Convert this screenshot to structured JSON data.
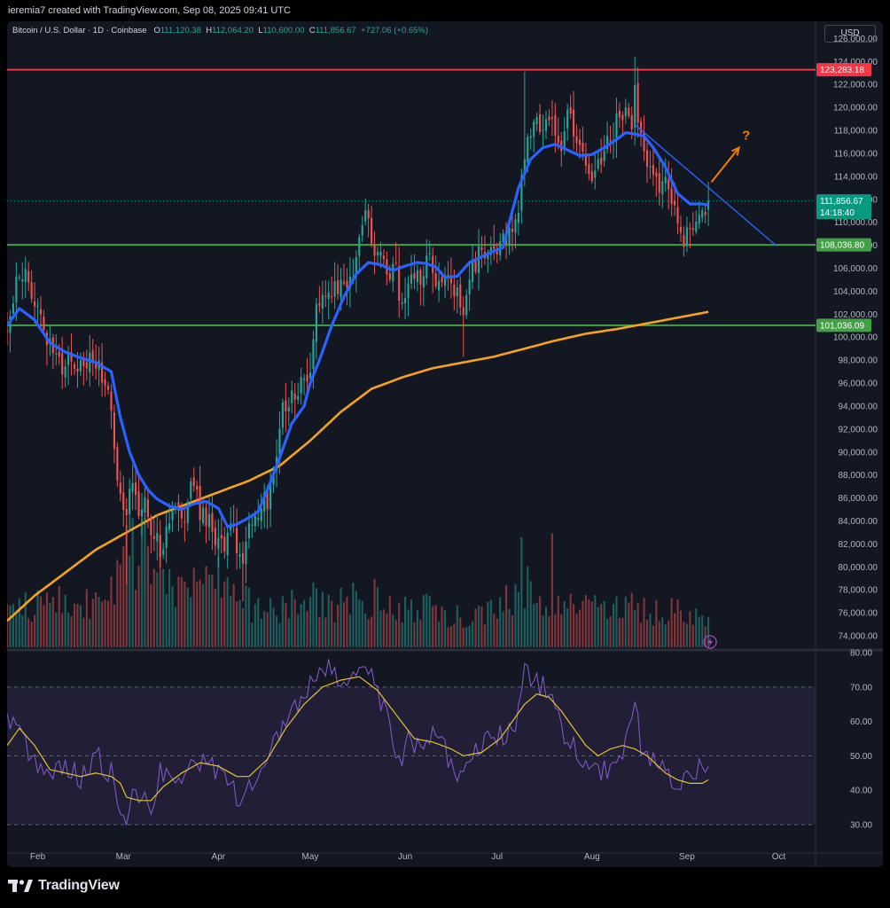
{
  "header": {
    "attribution": "ieremia7 created with TradingView.com, Sep 08, 2025 09:41 UTC"
  },
  "legend": {
    "symbol": "Bitcoin / U.S. Dollar · 1D · Coinbase",
    "open_label": "O",
    "open_value": "111,120.38",
    "high_label": "H",
    "high_value": "112,064.20",
    "low_label": "L",
    "low_value": "110,600.00",
    "close_label": "C",
    "close_value": "111,856.67",
    "change": "+727.06 (+0.65%)"
  },
  "currency_button": "USD",
  "footer": {
    "brand": "TradingView"
  },
  "colors": {
    "background": "#131722",
    "up": "#26a69a",
    "down": "#ef5350",
    "resistance": "#f23645",
    "support": "#43a047",
    "ema": "#2962ff",
    "ma200": "#f7a21b",
    "rsi": "#7e57c2",
    "rsi_ma": "#e6c229",
    "arrow": "#f57c00"
  },
  "chart_data": {
    "type": "candlestick",
    "symbol": "Bitcoin / U.S. Dollar",
    "interval": "1D",
    "exchange": "Coinbase",
    "currency": "USD",
    "y_range": [
      73000,
      127500
    ],
    "y_ticks": [
      "126,000.00",
      "124,000.00",
      "122,000.00",
      "120,000.00",
      "118,000.00",
      "116,000.00",
      "114,000.00",
      "112,000.00",
      "110,000.00",
      "108,000.00",
      "106,000.00",
      "104,000.00",
      "102,000.00",
      "100,000.00",
      "98,000.00",
      "96,000.00",
      "94,000.00",
      "92,000.00",
      "90,000.00",
      "88,000.00",
      "86,000.00",
      "84,000.00",
      "82,000.00",
      "80,000.00",
      "78,000.00",
      "76,000.00",
      "74,000.00"
    ],
    "x_ticks": [
      "Feb",
      "Mar",
      "Apr",
      "May",
      "Jun",
      "Jul",
      "Aug",
      "Sep",
      "Oct"
    ],
    "x_tick_days": [
      31,
      59,
      90,
      120,
      151,
      181,
      212,
      243,
      273
    ],
    "x_range_days": [
      21,
      285
    ],
    "price_anchors": [
      [
        21,
        100500
      ],
      [
        23,
        104000
      ],
      [
        26,
        106000
      ],
      [
        29,
        103500
      ],
      [
        32,
        101500
      ],
      [
        36,
        98500
      ],
      [
        40,
        97500
      ],
      [
        44,
        97000
      ],
      [
        48,
        98500
      ],
      [
        52,
        96500
      ],
      [
        54,
        95500
      ],
      [
        56,
        91000
      ],
      [
        58,
        86000
      ],
      [
        60,
        85000
      ],
      [
        62,
        88000
      ],
      [
        64,
        84000
      ],
      [
        66,
        86500
      ],
      [
        68,
        83000
      ],
      [
        70,
        82500
      ],
      [
        72,
        81000
      ],
      [
        74,
        84000
      ],
      [
        76,
        85000
      ],
      [
        78,
        83500
      ],
      [
        80,
        86000
      ],
      [
        82,
        87500
      ],
      [
        84,
        84000
      ],
      [
        86,
        84500
      ],
      [
        88,
        82500
      ],
      [
        90,
        83000
      ],
      [
        92,
        82200
      ],
      [
        94,
        84200
      ],
      [
        96,
        82000
      ],
      [
        98,
        79500
      ],
      [
        100,
        84000
      ],
      [
        102,
        85000
      ],
      [
        104,
        85500
      ],
      [
        106,
        86000
      ],
      [
        108,
        87500
      ],
      [
        110,
        93000
      ],
      [
        112,
        94500
      ],
      [
        114,
        94500
      ],
      [
        116,
        95500
      ],
      [
        118,
        96500
      ],
      [
        120,
        97000
      ],
      [
        122,
        103500
      ],
      [
        125,
        104000
      ],
      [
        128,
        103800
      ],
      [
        130,
        104000
      ],
      [
        132,
        104800
      ],
      [
        134,
        105500
      ],
      [
        136,
        108800
      ],
      [
        138,
        111000
      ],
      [
        140,
        108500
      ],
      [
        142,
        107500
      ],
      [
        144,
        107000
      ],
      [
        146,
        106000
      ],
      [
        148,
        105500
      ],
      [
        150,
        103000
      ],
      [
        152,
        105000
      ],
      [
        154,
        105000
      ],
      [
        156,
        105200
      ],
      [
        158,
        107500
      ],
      [
        160,
        105500
      ],
      [
        162,
        105000
      ],
      [
        164,
        105000
      ],
      [
        166,
        104500
      ],
      [
        168,
        103500
      ],
      [
        170,
        101500
      ],
      [
        172,
        105000
      ],
      [
        174,
        106500
      ],
      [
        176,
        107500
      ],
      [
        178,
        107000
      ],
      [
        180,
        107500
      ],
      [
        182,
        107800
      ],
      [
        184,
        108500
      ],
      [
        186,
        109200
      ],
      [
        188,
        111200
      ],
      [
        190,
        116000
      ],
      [
        192,
        118500
      ],
      [
        194,
        119000
      ],
      [
        196,
        118500
      ],
      [
        198,
        119200
      ],
      [
        200,
        118300
      ],
      [
        202,
        117000
      ],
      [
        204,
        119000
      ],
      [
        206,
        118000
      ],
      [
        208,
        117500
      ],
      [
        210,
        115500
      ],
      [
        212,
        113800
      ],
      [
        214,
        114500
      ],
      [
        216,
        116000
      ],
      [
        218,
        117500
      ],
      [
        220,
        118500
      ],
      [
        222,
        119000
      ],
      [
        224,
        119500
      ],
      [
        225,
        118000
      ],
      [
        226,
        121000
      ],
      [
        227,
        119000
      ],
      [
        228,
        117500
      ],
      [
        230,
        115500
      ],
      [
        232,
        113500
      ],
      [
        234,
        113500
      ],
      [
        236,
        113000
      ],
      [
        238,
        111500
      ],
      [
        240,
        110000
      ],
      [
        242,
        108800
      ],
      [
        244,
        109500
      ],
      [
        246,
        111000
      ],
      [
        248,
        110800
      ],
      [
        250,
        111856
      ]
    ],
    "volume_anchors": [
      [
        21,
        0.3
      ],
      [
        30,
        0.3
      ],
      [
        40,
        0.38
      ],
      [
        50,
        0.32
      ],
      [
        58,
        0.5
      ],
      [
        60,
        0.9
      ],
      [
        70,
        0.58
      ],
      [
        80,
        0.48
      ],
      [
        90,
        0.5
      ],
      [
        100,
        0.35
      ],
      [
        110,
        0.28
      ],
      [
        120,
        0.35
      ],
      [
        130,
        0.32
      ],
      [
        140,
        0.38
      ],
      [
        150,
        0.3
      ],
      [
        160,
        0.3
      ],
      [
        170,
        0.25
      ],
      [
        180,
        0.28
      ],
      [
        190,
        0.45
      ],
      [
        200,
        0.28
      ],
      [
        210,
        0.3
      ],
      [
        220,
        0.28
      ],
      [
        225,
        0.35
      ],
      [
        230,
        0.28
      ],
      [
        240,
        0.28
      ],
      [
        250,
        0.2
      ]
    ],
    "volume_spikes": [
      [
        59,
        0.78
      ],
      [
        60,
        0.95
      ],
      [
        189,
        0.85
      ],
      [
        199,
        0.88
      ]
    ],
    "rsi_anchors": [
      [
        21,
        60
      ],
      [
        26,
        55
      ],
      [
        30,
        47
      ],
      [
        35,
        45
      ],
      [
        40,
        48
      ],
      [
        45,
        44
      ],
      [
        50,
        50
      ],
      [
        55,
        45
      ],
      [
        58,
        32
      ],
      [
        60,
        27
      ],
      [
        62,
        40
      ],
      [
        65,
        38
      ],
      [
        68,
        35
      ],
      [
        71,
        46
      ],
      [
        75,
        42
      ],
      [
        80,
        45
      ],
      [
        85,
        48
      ],
      [
        90,
        45
      ],
      [
        94,
        44
      ],
      [
        96,
        35
      ],
      [
        98,
        38
      ],
      [
        102,
        44
      ],
      [
        106,
        52
      ],
      [
        110,
        57
      ],
      [
        114,
        62
      ],
      [
        118,
        68
      ],
      [
        122,
        73
      ],
      [
        126,
        75
      ],
      [
        130,
        70
      ],
      [
        134,
        73
      ],
      [
        138,
        78
      ],
      [
        141,
        70
      ],
      [
        145,
        62
      ],
      [
        149,
        47
      ],
      [
        152,
        55
      ],
      [
        156,
        53
      ],
      [
        160,
        58
      ],
      [
        164,
        52
      ],
      [
        168,
        42
      ],
      [
        170,
        48
      ],
      [
        174,
        52
      ],
      [
        178,
        55
      ],
      [
        182,
        56
      ],
      [
        186,
        58
      ],
      [
        188,
        63
      ],
      [
        190,
        76
      ],
      [
        192,
        73
      ],
      [
        194,
        71
      ],
      [
        196,
        70
      ],
      [
        198,
        67
      ],
      [
        200,
        62
      ],
      [
        202,
        58
      ],
      [
        206,
        53
      ],
      [
        210,
        48
      ],
      [
        214,
        44
      ],
      [
        218,
        47
      ],
      [
        222,
        52
      ],
      [
        224,
        58
      ],
      [
        226,
        68
      ],
      [
        228,
        53
      ],
      [
        232,
        49
      ],
      [
        236,
        44
      ],
      [
        240,
        40
      ],
      [
        242,
        45
      ],
      [
        244,
        42
      ],
      [
        246,
        46
      ],
      [
        250,
        49
      ]
    ],
    "rsi_ma_anchors": [
      [
        21,
        53
      ],
      [
        25,
        58
      ],
      [
        30,
        53
      ],
      [
        35,
        46
      ],
      [
        40,
        45
      ],
      [
        45,
        44
      ],
      [
        50,
        45
      ],
      [
        55,
        44
      ],
      [
        58,
        42
      ],
      [
        60,
        38
      ],
      [
        64,
        37
      ],
      [
        68,
        37
      ],
      [
        72,
        41
      ],
      [
        78,
        45
      ],
      [
        84,
        48
      ],
      [
        90,
        47
      ],
      [
        96,
        44
      ],
      [
        100,
        44
      ],
      [
        106,
        49
      ],
      [
        112,
        58
      ],
      [
        118,
        65
      ],
      [
        124,
        70
      ],
      [
        130,
        72
      ],
      [
        136,
        73
      ],
      [
        142,
        69
      ],
      [
        148,
        62
      ],
      [
        154,
        55
      ],
      [
        160,
        54
      ],
      [
        166,
        52
      ],
      [
        170,
        50
      ],
      [
        176,
        51
      ],
      [
        182,
        55
      ],
      [
        186,
        60
      ],
      [
        190,
        65
      ],
      [
        194,
        68
      ],
      [
        198,
        67
      ],
      [
        202,
        63
      ],
      [
        206,
        58
      ],
      [
        210,
        53
      ],
      [
        214,
        50
      ],
      [
        218,
        52
      ],
      [
        222,
        53
      ],
      [
        226,
        52
      ],
      [
        230,
        50
      ],
      [
        236,
        45
      ],
      [
        240,
        43
      ],
      [
        244,
        42
      ],
      [
        248,
        42
      ],
      [
        250,
        43
      ]
    ],
    "ema_anchors": [
      [
        21,
        101000
      ],
      [
        25,
        102500
      ],
      [
        30,
        101500
      ],
      [
        35,
        99500
      ],
      [
        40,
        98700
      ],
      [
        45,
        98200
      ],
      [
        50,
        97800
      ],
      [
        55,
        97000
      ],
      [
        58,
        93000
      ],
      [
        61,
        90000
      ],
      [
        64,
        88000
      ],
      [
        67,
        86700
      ],
      [
        70,
        85900
      ],
      [
        74,
        85300
      ],
      [
        78,
        85000
      ],
      [
        82,
        85500
      ],
      [
        86,
        85700
      ],
      [
        90,
        85100
      ],
      [
        93,
        83500
      ],
      [
        96,
        83700
      ],
      [
        100,
        84300
      ],
      [
        103,
        84800
      ],
      [
        106,
        86700
      ],
      [
        110,
        89500
      ],
      [
        114,
        92500
      ],
      [
        118,
        94000
      ],
      [
        120,
        96000
      ],
      [
        123,
        98000
      ],
      [
        127,
        101000
      ],
      [
        131,
        103500
      ],
      [
        135,
        105500
      ],
      [
        139,
        106500
      ],
      [
        143,
        106300
      ],
      [
        147,
        105800
      ],
      [
        151,
        106200
      ],
      [
        155,
        106500
      ],
      [
        158,
        106400
      ],
      [
        161,
        106100
      ],
      [
        164,
        105200
      ],
      [
        168,
        105300
      ],
      [
        172,
        106500
      ],
      [
        176,
        107000
      ],
      [
        180,
        107500
      ],
      [
        183,
        107800
      ],
      [
        185,
        110000
      ],
      [
        188,
        113000
      ],
      [
        192,
        115500
      ],
      [
        196,
        116500
      ],
      [
        200,
        116800
      ],
      [
        204,
        116300
      ],
      [
        208,
        115800
      ],
      [
        212,
        115900
      ],
      [
        216,
        116500
      ],
      [
        220,
        117200
      ],
      [
        223,
        117800
      ],
      [
        226,
        117700
      ],
      [
        229,
        117500
      ],
      [
        232,
        116500
      ],
      [
        236,
        114800
      ],
      [
        240,
        112500
      ],
      [
        244,
        111600
      ],
      [
        248,
        111600
      ],
      [
        250,
        111500
      ]
    ],
    "ma200_anchors": [
      [
        21,
        75300
      ],
      [
        30,
        77500
      ],
      [
        40,
        79500
      ],
      [
        50,
        81500
      ],
      [
        60,
        83000
      ],
      [
        70,
        84500
      ],
      [
        80,
        85500
      ],
      [
        90,
        86500
      ],
      [
        100,
        87500
      ],
      [
        110,
        88800
      ],
      [
        120,
        91000
      ],
      [
        130,
        93500
      ],
      [
        140,
        95500
      ],
      [
        150,
        96500
      ],
      [
        160,
        97300
      ],
      [
        170,
        97800
      ],
      [
        180,
        98300
      ],
      [
        190,
        99000
      ],
      [
        200,
        99700
      ],
      [
        210,
        100300
      ],
      [
        220,
        100700
      ],
      [
        230,
        101200
      ],
      [
        240,
        101700
      ],
      [
        250,
        102200
      ]
    ],
    "horizontal_levels": [
      {
        "price": 123283.18,
        "label": "123,283.18",
        "color": "#f23645"
      },
      {
        "price": 108036.8,
        "label": "108,036.80",
        "color": "#43a047"
      },
      {
        "price": 101036.09,
        "label": "101,036.09",
        "color": "#43a047"
      }
    ],
    "trendline": {
      "start": [
        226,
        118500
      ],
      "end": [
        272,
        108000
      ]
    },
    "annotation": {
      "arrow_from": [
        251,
        113500
      ],
      "arrow_to": [
        260,
        116500
      ],
      "text": "?",
      "text_at": [
        261,
        117200
      ]
    },
    "last_price": {
      "value": "111,856.67",
      "countdown": "14:18:40",
      "price": 111856.67
    },
    "rsi": {
      "y_ticks": [
        "80.00",
        "70.00",
        "60.00",
        "50.00",
        "40.00",
        "30.00"
      ],
      "upper_band": 70,
      "lower_band": 30,
      "middle": 50,
      "range": [
        22,
        80
      ]
    }
  }
}
